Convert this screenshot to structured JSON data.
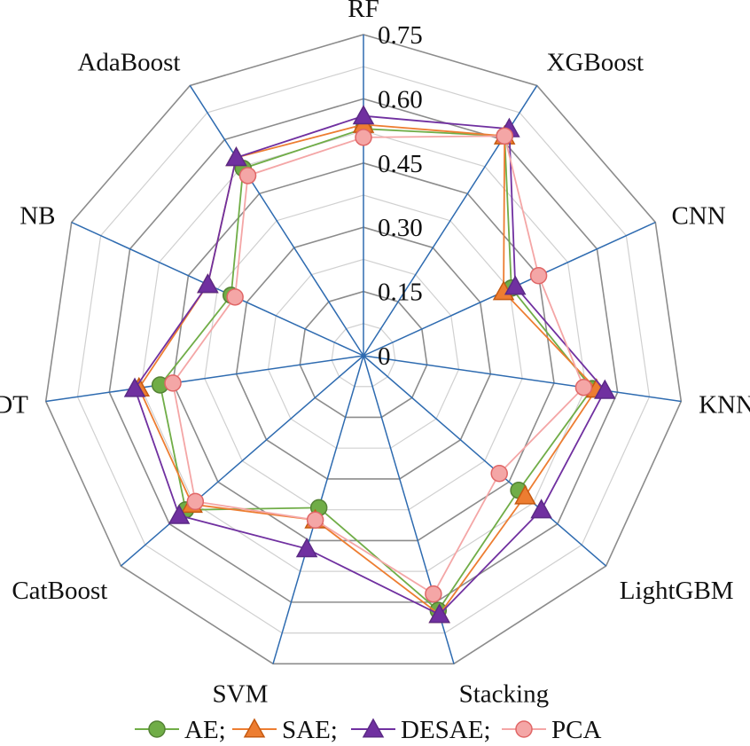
{
  "chart_data": {
    "type": "radar",
    "categories": [
      "RF",
      "XGBoost",
      "CNN",
      "KNN",
      "LightGBM",
      "Stacking",
      "SVM",
      "CatBoost",
      "DT",
      "NB",
      "AdaBoost"
    ],
    "r_ticks": [
      "0",
      "0.15",
      "0.30",
      "0.45",
      "0.60",
      "0.75"
    ],
    "rlim": [
      0,
      0.75
    ],
    "grid": true,
    "legend_position": "bottom",
    "series": [
      {
        "name": "AE;",
        "color": "#70ad47",
        "edge_color": "#548235",
        "marker": "circle",
        "values": [
          0.53,
          0.61,
          0.38,
          0.54,
          0.48,
          0.62,
          0.37,
          0.55,
          0.48,
          0.34,
          0.52
        ]
      },
      {
        "name": "SAE;",
        "color": "#ed7d31",
        "edge_color": "#c55a11",
        "marker": "triangle",
        "values": [
          0.54,
          0.61,
          0.36,
          0.55,
          0.5,
          0.63,
          0.4,
          0.53,
          0.53,
          0.4,
          0.55
        ]
      },
      {
        "name": "DESAE;",
        "color": "#7030a0",
        "edge_color": "#5b2a86",
        "marker": "triangle",
        "values": [
          0.56,
          0.63,
          0.39,
          0.57,
          0.55,
          0.63,
          0.47,
          0.57,
          0.54,
          0.4,
          0.55
        ]
      },
      {
        "name": "PCA",
        "color": "#f4a6a6",
        "edge_color": "#e06666",
        "marker": "circle",
        "values": [
          0.51,
          0.61,
          0.45,
          0.52,
          0.42,
          0.58,
          0.4,
          0.52,
          0.45,
          0.33,
          0.5
        ]
      }
    ]
  }
}
